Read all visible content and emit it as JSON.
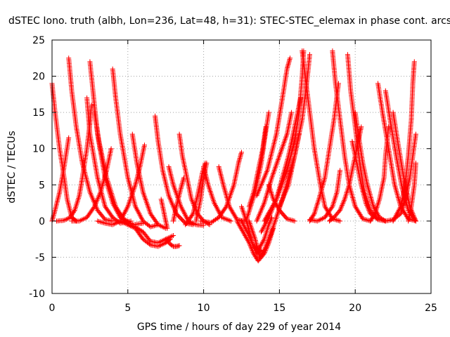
{
  "chart_data": {
    "type": "scatter",
    "title": "dSTEC Iono. truth (albh, Lon=236, Lat=48, h=31): STEC-STEC_elemax in phase cont. arcs",
    "xlabel": "GPS time / hours of day 229 of year 2014",
    "ylabel": "dSTEC  / TECUs",
    "xlim": [
      0,
      25
    ],
    "ylim": [
      -10,
      25
    ],
    "xticks": [
      "0",
      "5",
      "10",
      "15",
      "20",
      "25"
    ],
    "yticks": [
      "-10",
      "-5",
      "0",
      "5",
      "10",
      "15",
      "20",
      "25"
    ],
    "xtick_values": [
      0,
      5,
      10,
      15,
      20,
      25
    ],
    "ytick_values": [
      -10,
      -5,
      0,
      5,
      10,
      15,
      20,
      25
    ],
    "grid": true,
    "marker": "plus",
    "color": "#ff0000",
    "arcs": [
      [
        [
          0.0,
          19.0
        ],
        [
          0.2,
          15
        ],
        [
          0.5,
          10
        ],
        [
          0.8,
          6
        ],
        [
          1.0,
          3
        ],
        [
          1.3,
          0.5
        ],
        [
          1.6,
          0
        ]
      ],
      [
        [
          0.0,
          0.0
        ],
        [
          0.2,
          1.5
        ],
        [
          0.5,
          4
        ],
        [
          0.8,
          7.5
        ],
        [
          1.1,
          11.5
        ]
      ],
      [
        [
          0.3,
          0.0
        ],
        [
          0.8,
          0.1
        ],
        [
          1.2,
          0.5
        ],
        [
          1.5,
          1.5
        ],
        [
          1.8,
          3.5
        ],
        [
          2.0,
          6
        ],
        [
          2.3,
          10
        ],
        [
          2.5,
          13.5
        ],
        [
          2.6,
          16
        ]
      ],
      [
        [
          1.1,
          22.5
        ],
        [
          1.3,
          18
        ],
        [
          1.6,
          13
        ],
        [
          2.0,
          8
        ],
        [
          2.5,
          4
        ],
        [
          3.0,
          1.5
        ],
        [
          3.5,
          0.2
        ],
        [
          4.0,
          0
        ]
      ],
      [
        [
          1.3,
          0.0
        ],
        [
          1.8,
          0.0
        ],
        [
          2.3,
          0.5
        ],
        [
          2.8,
          2
        ],
        [
          3.2,
          4
        ],
        [
          3.6,
          7
        ],
        [
          3.9,
          10
        ]
      ],
      [
        [
          2.5,
          22.0
        ],
        [
          2.7,
          18
        ],
        [
          3.0,
          12
        ],
        [
          3.5,
          6
        ],
        [
          4.0,
          2.5
        ],
        [
          4.5,
          0.5
        ],
        [
          5.0,
          0
        ]
      ],
      [
        [
          2.3,
          17.0
        ],
        [
          2.5,
          12
        ],
        [
          3.0,
          6
        ],
        [
          3.5,
          2
        ],
        [
          4.0,
          0.5
        ],
        [
          4.5,
          -0.3
        ],
        [
          5.2,
          0
        ]
      ],
      [
        [
          2.8,
          15.0
        ],
        [
          3.1,
          11
        ],
        [
          3.6,
          6
        ],
        [
          4.2,
          2
        ],
        [
          4.8,
          0
        ],
        [
          5.4,
          -0.5
        ],
        [
          6.0,
          -0.3
        ]
      ],
      [
        [
          4.0,
          21.0
        ],
        [
          4.2,
          17
        ],
        [
          4.5,
          12
        ],
        [
          5.0,
          6
        ],
        [
          5.5,
          2
        ],
        [
          6.0,
          0
        ],
        [
          6.5,
          -0.8
        ],
        [
          7.0,
          -0.5
        ]
      ],
      [
        [
          3.0,
          0.0
        ],
        [
          3.5,
          -0.3
        ],
        [
          4.0,
          -0.5
        ],
        [
          4.5,
          0
        ],
        [
          5.0,
          2
        ],
        [
          5.5,
          5
        ],
        [
          5.8,
          7.5
        ],
        [
          6.1,
          10.5
        ]
      ],
      [
        [
          5.3,
          12.0
        ],
        [
          5.6,
          8
        ],
        [
          6.0,
          4
        ],
        [
          6.5,
          1
        ],
        [
          7.0,
          -0.5
        ],
        [
          7.5,
          -1
        ]
      ],
      [
        [
          4.5,
          0.0
        ],
        [
          5.0,
          -0.5
        ],
        [
          5.5,
          -0.8
        ],
        [
          6.0,
          -1.5
        ],
        [
          6.5,
          -2.8
        ],
        [
          7.0,
          -3
        ],
        [
          7.5,
          -2.5
        ],
        [
          8.0,
          -2
        ]
      ],
      [
        [
          5.0,
          -0.5
        ],
        [
          5.5,
          -1
        ],
        [
          6.0,
          -2.5
        ],
        [
          6.5,
          -3.3
        ],
        [
          7.0,
          -3.5
        ],
        [
          7.5,
          -3
        ],
        [
          7.8,
          -2.5
        ]
      ],
      [
        [
          6.8,
          14.5
        ],
        [
          7.0,
          11
        ],
        [
          7.3,
          7
        ],
        [
          7.7,
          3.5
        ],
        [
          8.2,
          1
        ],
        [
          8.8,
          -0.3
        ],
        [
          9.3,
          -0.5
        ]
      ],
      [
        [
          7.5,
          -2.5
        ],
        [
          7.8,
          -3.2
        ],
        [
          8.0,
          -3.5
        ],
        [
          8.2,
          -3.5
        ],
        [
          8.4,
          -3.4
        ]
      ],
      [
        [
          7.7,
          7.5
        ],
        [
          8.0,
          5
        ],
        [
          8.5,
          2
        ],
        [
          9.0,
          0
        ],
        [
          9.5,
          -0.5
        ],
        [
          10.0,
          -0.6
        ]
      ],
      [
        [
          7.6,
          -1.0
        ],
        [
          7.4,
          1
        ],
        [
          7.2,
          3
        ]
      ],
      [
        [
          8.4,
          12.0
        ],
        [
          8.6,
          9
        ],
        [
          8.9,
          6
        ],
        [
          9.2,
          3
        ],
        [
          9.6,
          1
        ],
        [
          10.0,
          0
        ],
        [
          10.4,
          -0.5
        ]
      ],
      [
        [
          8.0,
          0.0
        ],
        [
          8.2,
          2
        ],
        [
          8.5,
          4.5
        ],
        [
          8.7,
          6
        ]
      ],
      [
        [
          8.8,
          -0.5
        ],
        [
          9.3,
          1
        ],
        [
          9.6,
          3.5
        ],
        [
          9.9,
          6.5
        ],
        [
          10.1,
          8
        ]
      ],
      [
        [
          9.5,
          0.0
        ],
        [
          9.8,
          3
        ],
        [
          10.0,
          6
        ],
        [
          10.2,
          8
        ]
      ],
      [
        [
          10.0,
          7.5
        ],
        [
          10.3,
          5
        ],
        [
          10.7,
          2.5
        ],
        [
          11.2,
          0.5
        ],
        [
          11.8,
          0
        ]
      ],
      [
        [
          9.8,
          0.0
        ],
        [
          10.5,
          -0.2
        ],
        [
          11.0,
          0.5
        ],
        [
          11.5,
          2
        ],
        [
          12.0,
          5
        ],
        [
          12.3,
          8
        ],
        [
          12.5,
          9.5
        ]
      ],
      [
        [
          11.0,
          7.5
        ],
        [
          11.3,
          5
        ],
        [
          11.7,
          2
        ],
        [
          12.2,
          0.2
        ],
        [
          12.7,
          0
        ]
      ],
      [
        [
          12.2,
          0.0
        ],
        [
          12.6,
          -1.5
        ],
        [
          13.0,
          -3
        ],
        [
          13.3,
          -4.5
        ],
        [
          13.6,
          -5.5
        ],
        [
          14.0,
          -4.5
        ],
        [
          14.3,
          -3
        ],
        [
          14.6,
          -1
        ]
      ],
      [
        [
          12.5,
          0.0
        ],
        [
          13.0,
          -2
        ],
        [
          13.3,
          -3.5
        ],
        [
          13.6,
          -4
        ],
        [
          14.0,
          -2.5
        ],
        [
          14.3,
          -0.5
        ],
        [
          14.5,
          0.5
        ]
      ],
      [
        [
          12.5,
          2.0
        ],
        [
          12.9,
          -0.5
        ],
        [
          13.2,
          -3
        ],
        [
          13.5,
          -4.5
        ],
        [
          13.8,
          -4
        ]
      ],
      [
        [
          12.8,
          0.0
        ],
        [
          13.1,
          2
        ],
        [
          13.4,
          4
        ],
        [
          13.8,
          8
        ],
        [
          14.0,
          11
        ],
        [
          14.3,
          15
        ]
      ],
      [
        [
          13.5,
          0.0
        ],
        [
          14.0,
          2.5
        ],
        [
          14.5,
          6
        ],
        [
          15.0,
          9
        ],
        [
          15.5,
          12
        ],
        [
          15.8,
          15
        ]
      ],
      [
        [
          13.0,
          2.0
        ],
        [
          13.3,
          4
        ],
        [
          13.6,
          7
        ],
        [
          13.9,
          10
        ],
        [
          14.1,
          13
        ]
      ],
      [
        [
          14.3,
          5.0
        ],
        [
          14.6,
          3
        ],
        [
          15.0,
          1.5
        ],
        [
          15.5,
          0.3
        ],
        [
          16.0,
          0
        ]
      ],
      [
        [
          13.8,
          -1.5
        ],
        [
          14.3,
          0.5
        ],
        [
          14.8,
          3
        ],
        [
          15.2,
          6
        ],
        [
          15.6,
          9
        ],
        [
          15.9,
          12
        ],
        [
          16.2,
          15
        ],
        [
          16.4,
          17
        ]
      ],
      [
        [
          13.0,
          0.0
        ],
        [
          13.4,
          -2.5
        ],
        [
          13.7,
          -5
        ],
        [
          14.0,
          -4
        ],
        [
          14.4,
          -2
        ],
        [
          14.8,
          0.5
        ],
        [
          15.2,
          3
        ],
        [
          15.6,
          6
        ],
        [
          16.0,
          9
        ],
        [
          16.3,
          12
        ]
      ],
      [
        [
          14.0,
          0.0
        ],
        [
          14.8,
          3
        ],
        [
          15.5,
          7
        ],
        [
          16.0,
          11
        ],
        [
          16.3,
          15
        ],
        [
          16.5,
          20
        ],
        [
          16.6,
          23.5
        ]
      ],
      [
        [
          13.5,
          3.5
        ],
        [
          14.2,
          7
        ],
        [
          14.8,
          12
        ],
        [
          15.2,
          17
        ],
        [
          15.5,
          21
        ],
        [
          15.7,
          22.5
        ]
      ],
      [
        [
          15.0,
          2.0
        ],
        [
          15.6,
          5
        ],
        [
          16.0,
          9
        ],
        [
          16.5,
          14
        ],
        [
          16.8,
          19
        ],
        [
          17.0,
          23
        ]
      ],
      [
        [
          16.5,
          23.5
        ],
        [
          16.7,
          20
        ],
        [
          17.0,
          15
        ],
        [
          17.3,
          10
        ],
        [
          17.7,
          5
        ],
        [
          18.0,
          2
        ],
        [
          18.5,
          0.3
        ],
        [
          19.0,
          0
        ]
      ],
      [
        [
          17.0,
          0.0
        ],
        [
          17.3,
          1
        ],
        [
          17.6,
          3
        ],
        [
          18.0,
          6
        ],
        [
          18.3,
          10
        ],
        [
          18.6,
          14
        ],
        [
          18.9,
          19
        ]
      ],
      [
        [
          17.0,
          0.2
        ],
        [
          17.5,
          0
        ],
        [
          18.0,
          0.5
        ],
        [
          18.5,
          2
        ],
        [
          18.8,
          4
        ],
        [
          19.0,
          7
        ]
      ],
      [
        [
          18.5,
          23.5
        ],
        [
          18.7,
          19
        ],
        [
          19.0,
          14
        ],
        [
          19.3,
          9
        ],
        [
          19.6,
          5
        ],
        [
          20.0,
          2
        ],
        [
          20.5,
          0.3
        ],
        [
          21.0,
          0
        ]
      ],
      [
        [
          19.5,
          23.0
        ],
        [
          19.7,
          18
        ],
        [
          20.0,
          13
        ],
        [
          20.3,
          8
        ],
        [
          20.6,
          4
        ],
        [
          21.0,
          1.5
        ],
        [
          21.5,
          0.2
        ],
        [
          22.0,
          0
        ]
      ],
      [
        [
          18.3,
          0.0
        ],
        [
          18.6,
          0.5
        ],
        [
          19.0,
          1.5
        ],
        [
          19.3,
          3
        ],
        [
          19.6,
          5
        ],
        [
          19.9,
          8
        ],
        [
          20.2,
          11
        ],
        [
          20.4,
          13
        ]
      ],
      [
        [
          19.8,
          11.0
        ],
        [
          20.1,
          8
        ],
        [
          20.4,
          5
        ],
        [
          20.7,
          2.5
        ],
        [
          21.0,
          1
        ],
        [
          21.5,
          0.2
        ]
      ],
      [
        [
          20.0,
          15.0
        ],
        [
          20.2,
          12
        ],
        [
          20.5,
          8
        ],
        [
          20.8,
          5
        ],
        [
          21.2,
          2
        ],
        [
          21.6,
          0.5
        ],
        [
          22.0,
          0
        ]
      ],
      [
        [
          21.0,
          0.0
        ],
        [
          21.3,
          1
        ],
        [
          21.6,
          3
        ],
        [
          21.9,
          6
        ],
        [
          22.0,
          9
        ],
        [
          22.2,
          13
        ]
      ],
      [
        [
          21.5,
          19.0
        ],
        [
          21.8,
          15
        ],
        [
          22.2,
          10
        ],
        [
          22.6,
          5
        ],
        [
          23.0,
          2
        ],
        [
          23.5,
          0.3
        ],
        [
          24.0,
          0
        ]
      ],
      [
        [
          22.0,
          18.0
        ],
        [
          22.3,
          14
        ],
        [
          22.7,
          9
        ],
        [
          23.1,
          4.5
        ],
        [
          23.5,
          1.5
        ],
        [
          24.0,
          0
        ]
      ],
      [
        [
          22.5,
          15.0
        ],
        [
          22.8,
          11
        ],
        [
          23.2,
          6
        ],
        [
          23.6,
          2
        ],
        [
          24.0,
          0
        ]
      ],
      [
        [
          22.0,
          0.0
        ],
        [
          22.5,
          0.2
        ],
        [
          23.0,
          1
        ],
        [
          23.3,
          3
        ],
        [
          23.6,
          6
        ],
        [
          23.8,
          9
        ],
        [
          24.0,
          12
        ]
      ],
      [
        [
          22.5,
          0.0
        ],
        [
          23.0,
          2
        ],
        [
          23.3,
          5
        ],
        [
          23.5,
          9
        ],
        [
          23.7,
          14
        ],
        [
          23.8,
          19
        ],
        [
          23.9,
          22
        ]
      ],
      [
        [
          23.5,
          0.0
        ],
        [
          23.7,
          2
        ],
        [
          23.9,
          5
        ],
        [
          24.0,
          8
        ]
      ]
    ]
  }
}
